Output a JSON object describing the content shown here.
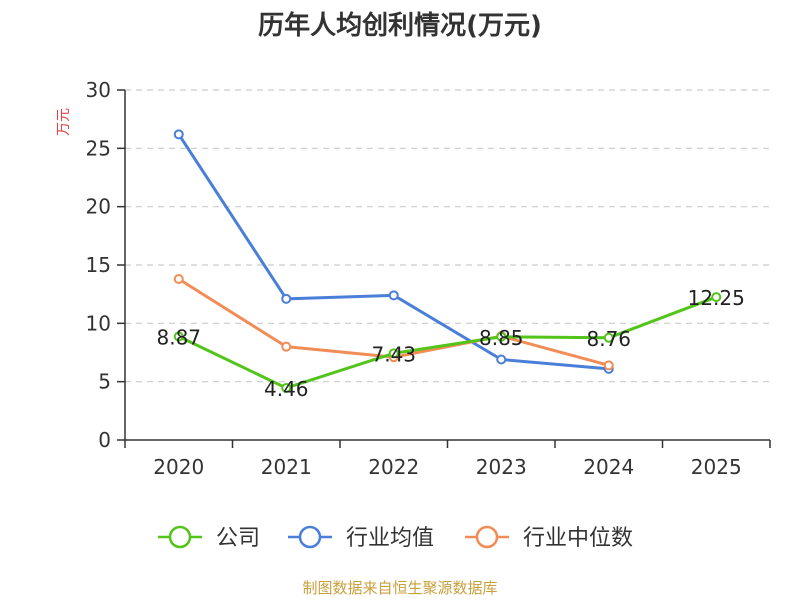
{
  "chart_data": {
    "type": "line",
    "title": "历年人均创利情况(万元)",
    "ylabel": "万元",
    "ylim": [
      0,
      30
    ],
    "yticks": [
      0,
      5,
      10,
      15,
      20,
      25,
      30
    ],
    "categories": [
      "2020",
      "2021",
      "2022",
      "2023",
      "2024",
      "2025"
    ],
    "grid": true,
    "legend_position": "bottom",
    "series": [
      {
        "name": "公司",
        "color": "#52c41a",
        "values": [
          8.87,
          4.46,
          7.43,
          8.85,
          8.76,
          12.25
        ],
        "labels": [
          "8.87",
          "4.46",
          "7.43",
          "8.85",
          "8.76",
          "12.25"
        ]
      },
      {
        "name": "行业均值",
        "color": "#4a7fd9",
        "values": [
          26.2,
          12.1,
          12.4,
          6.9,
          6.1,
          null
        ]
      },
      {
        "name": "行业中位数",
        "color": "#f28c55",
        "values": [
          13.8,
          8.0,
          7.1,
          8.9,
          6.4,
          null
        ]
      }
    ]
  },
  "source": "制图数据来自恒生聚源数据库",
  "colors": {
    "ylabel": "#e84040",
    "source": "#c8a03c",
    "axis": "#333333",
    "grid": "#cccccc"
  }
}
